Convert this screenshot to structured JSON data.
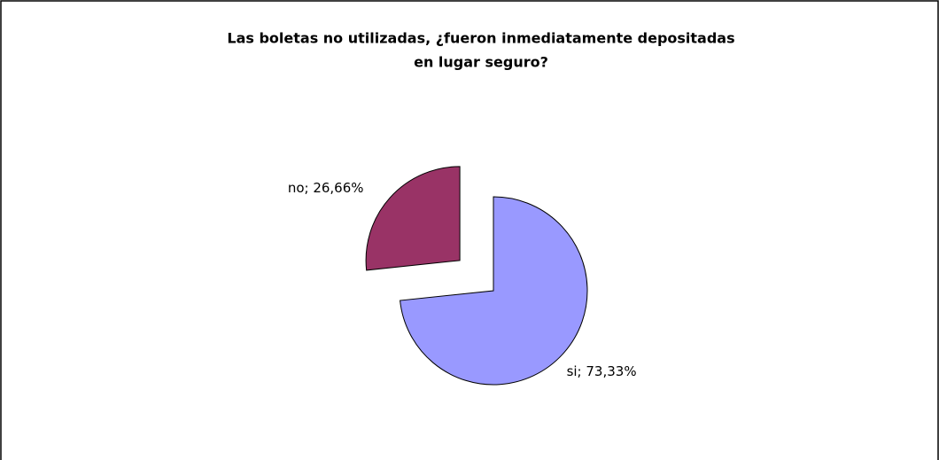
{
  "chart_data": {
    "type": "pie",
    "title": [
      "Las boletas no utilizadas, ¿fueron inmediatamente depositadas",
      "en lugar seguro?"
    ],
    "values": [
      73.33,
      26.66
    ],
    "value_labels": [
      "si; 73,33%",
      "no; 26,66%"
    ],
    "colors": [
      "#9999ff",
      "#993366"
    ],
    "exploded": [
      false,
      true
    ]
  }
}
